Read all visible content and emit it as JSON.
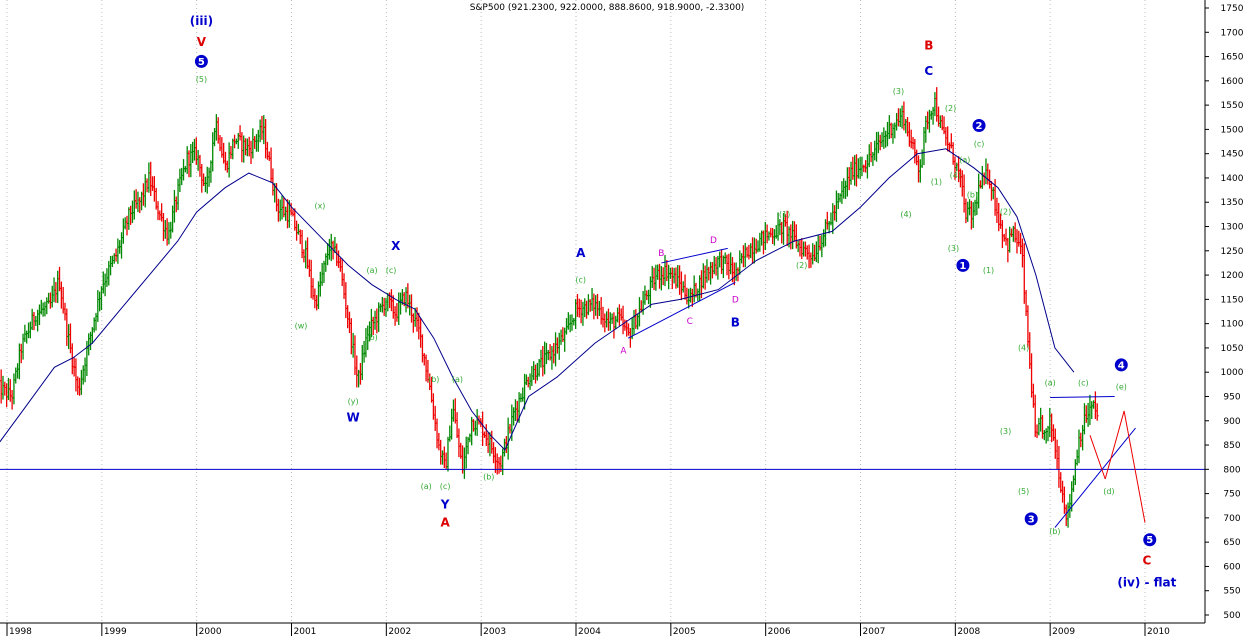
{
  "chart_data": {
    "type": "candlestick",
    "title": "S&P500 (921.2300, 922.0000, 888.8600, 918.9000, -2.3300)",
    "symbol": "S&P500",
    "last_bar": {
      "open": 921.23,
      "high": 922.0,
      "low": 888.86,
      "close": 918.9,
      "change": -2.33
    },
    "y_axis": {
      "position": "right",
      "ylim": [
        500,
        1750
      ],
      "ticks": [
        500,
        550,
        600,
        650,
        700,
        750,
        800,
        850,
        900,
        950,
        1000,
        1050,
        1100,
        1150,
        1200,
        1250,
        1300,
        1350,
        1400,
        1450,
        1500,
        1550,
        1600,
        1650,
        1700,
        1750
      ]
    },
    "x_axis": {
      "ticks": [
        "1998",
        "1999",
        "2000",
        "2001",
        "2002",
        "2003",
        "2004",
        "2005",
        "2006",
        "2007",
        "2008",
        "2009",
        "2010"
      ],
      "xlim": [
        1997.9,
        2010.25
      ]
    },
    "grid": "vertical-dotted",
    "colors": {
      "up": "#008800",
      "down": "#ee0000",
      "ma": "#00008b",
      "lines": "#0000cc",
      "wave_minor": "#33aa33",
      "wave_blue": "#0000cc",
      "wave_red": "#dd0000",
      "wave_magenta": "#cc00cc"
    },
    "series": [
      {
        "name": "S&P500 weekly",
        "kind": "bars",
        "anchors": [
          [
            1997.9,
            970
          ],
          [
            1998.05,
            950
          ],
          [
            1998.15,
            1050
          ],
          [
            1998.3,
            1120
          ],
          [
            1998.45,
            1135
          ],
          [
            1998.55,
            1190
          ],
          [
            1998.62,
            1100
          ],
          [
            1998.75,
            960
          ],
          [
            1998.85,
            1050
          ],
          [
            1999.0,
            1180
          ],
          [
            1999.15,
            1240
          ],
          [
            1999.3,
            1330
          ],
          [
            1999.4,
            1350
          ],
          [
            1999.5,
            1400
          ],
          [
            1999.6,
            1330
          ],
          [
            1999.7,
            1280
          ],
          [
            1999.8,
            1370
          ],
          [
            1999.9,
            1440
          ],
          [
            2000.0,
            1450
          ],
          [
            2000.1,
            1370
          ],
          [
            2000.2,
            1520
          ],
          [
            2000.3,
            1420
          ],
          [
            2000.4,
            1480
          ],
          [
            2000.55,
            1460
          ],
          [
            2000.7,
            1500
          ],
          [
            2000.85,
            1340
          ],
          [
            2001.0,
            1320
          ],
          [
            2001.15,
            1240
          ],
          [
            2001.25,
            1140
          ],
          [
            2001.4,
            1260
          ],
          [
            2001.5,
            1230
          ],
          [
            2001.58,
            1130
          ],
          [
            2001.7,
            980
          ],
          [
            2001.8,
            1080
          ],
          [
            2002.0,
            1150
          ],
          [
            2002.1,
            1120
          ],
          [
            2002.2,
            1160
          ],
          [
            2002.35,
            1080
          ],
          [
            2002.45,
            980
          ],
          [
            2002.55,
            850
          ],
          [
            2002.62,
            800
          ],
          [
            2002.7,
            930
          ],
          [
            2002.8,
            800
          ],
          [
            2002.9,
            900
          ],
          [
            2003.0,
            890
          ],
          [
            2003.1,
            850
          ],
          [
            2003.2,
            810
          ],
          [
            2003.35,
            920
          ],
          [
            2003.5,
            990
          ],
          [
            2003.7,
            1030
          ],
          [
            2003.9,
            1080
          ],
          [
            2004.0,
            1130
          ],
          [
            2004.2,
            1140
          ],
          [
            2004.35,
            1100
          ],
          [
            2004.45,
            1110
          ],
          [
            2004.55,
            1075
          ],
          [
            2004.7,
            1140
          ],
          [
            2004.85,
            1200
          ],
          [
            2004.95,
            1210
          ],
          [
            2005.1,
            1180
          ],
          [
            2005.2,
            1150
          ],
          [
            2005.35,
            1200
          ],
          [
            2005.5,
            1230
          ],
          [
            2005.6,
            1220
          ],
          [
            2005.68,
            1200
          ],
          [
            2005.8,
            1250
          ],
          [
            2006.0,
            1280
          ],
          [
            2006.2,
            1300
          ],
          [
            2006.35,
            1260
          ],
          [
            2006.5,
            1240
          ],
          [
            2006.7,
            1320
          ],
          [
            2006.9,
            1410
          ],
          [
            2007.1,
            1440
          ],
          [
            2007.3,
            1500
          ],
          [
            2007.45,
            1530
          ],
          [
            2007.55,
            1460
          ],
          [
            2007.62,
            1420
          ],
          [
            2007.7,
            1520
          ],
          [
            2007.78,
            1560
          ],
          [
            2007.85,
            1500
          ],
          [
            2007.95,
            1460
          ],
          [
            2008.05,
            1400
          ],
          [
            2008.1,
            1330
          ],
          [
            2008.18,
            1320
          ],
          [
            2008.25,
            1380
          ],
          [
            2008.35,
            1410
          ],
          [
            2008.45,
            1320
          ],
          [
            2008.55,
            1260
          ],
          [
            2008.6,
            1290
          ],
          [
            2008.7,
            1250
          ],
          [
            2008.75,
            1100
          ],
          [
            2008.8,
            980
          ],
          [
            2008.85,
            850
          ],
          [
            2008.9,
            900
          ],
          [
            2008.95,
            860
          ],
          [
            2009.0,
            900
          ],
          [
            2009.05,
            850
          ],
          [
            2009.12,
            760
          ],
          [
            2009.18,
            700
          ],
          [
            2009.25,
            790
          ],
          [
            2009.3,
            860
          ],
          [
            2009.38,
            910
          ],
          [
            2009.45,
            930
          ],
          [
            2009.5,
            910
          ]
        ]
      },
      {
        "name": "Moving average",
        "kind": "line",
        "points": [
          [
            1997.9,
            850
          ],
          [
            1998.2,
            930
          ],
          [
            1998.5,
            1010
          ],
          [
            1998.7,
            1030
          ],
          [
            1998.9,
            1060
          ],
          [
            1999.2,
            1130
          ],
          [
            1999.5,
            1200
          ],
          [
            1999.8,
            1270
          ],
          [
            2000.0,
            1330
          ],
          [
            2000.3,
            1380
          ],
          [
            2000.55,
            1410
          ],
          [
            2000.8,
            1390
          ],
          [
            2001.0,
            1340
          ],
          [
            2001.3,
            1280
          ],
          [
            2001.6,
            1220
          ],
          [
            2001.85,
            1180
          ],
          [
            2002.1,
            1150
          ],
          [
            2002.3,
            1130
          ],
          [
            2002.5,
            1070
          ],
          [
            2002.7,
            990
          ],
          [
            2002.9,
            920
          ],
          [
            2003.1,
            870
          ],
          [
            2003.25,
            840
          ],
          [
            2003.5,
            950
          ],
          [
            2003.8,
            990
          ],
          [
            2004.2,
            1060
          ],
          [
            2004.5,
            1100
          ],
          [
            2004.8,
            1140
          ],
          [
            2005.1,
            1150
          ],
          [
            2005.5,
            1170
          ],
          [
            2005.9,
            1230
          ],
          [
            2006.3,
            1270
          ],
          [
            2006.7,
            1290
          ],
          [
            2007.0,
            1340
          ],
          [
            2007.3,
            1400
          ],
          [
            2007.6,
            1450
          ],
          [
            2007.9,
            1460
          ],
          [
            2008.2,
            1420
          ],
          [
            2008.45,
            1380
          ],
          [
            2008.65,
            1320
          ],
          [
            2008.85,
            1200
          ],
          [
            2009.05,
            1050
          ],
          [
            2009.25,
            1000
          ]
        ]
      }
    ],
    "lines": [
      {
        "kind": "horizontal",
        "y": 800
      },
      {
        "kind": "segment",
        "from": [
          2009.0,
          948
        ],
        "to": [
          2009.68,
          950
        ]
      },
      {
        "kind": "segment",
        "from": [
          2009.05,
          680
        ],
        "to": [
          2009.9,
          885
        ]
      },
      {
        "kind": "segment",
        "from": [
          2004.55,
          1070
        ],
        "to": [
          2005.68,
          1185
        ]
      },
      {
        "kind": "segment",
        "from": [
          2004.9,
          1225
        ],
        "to": [
          2005.6,
          1255
        ]
      },
      {
        "kind": "projection",
        "points": [
          [
            2009.42,
            870
          ],
          [
            2009.58,
            780
          ]
        ]
      },
      {
        "kind": "projection",
        "points": [
          [
            2009.58,
            780
          ],
          [
            2009.78,
            920
          ],
          [
            2010.0,
            690
          ]
        ]
      }
    ],
    "annotations": [
      {
        "text": "(iii)",
        "x": 2000.05,
        "y": 1723,
        "style": "blue_lg"
      },
      {
        "text": "V",
        "x": 2000.05,
        "y": 1680,
        "style": "red_lg"
      },
      {
        "text": "5",
        "x": 2000.05,
        "y": 1640,
        "style": "circle"
      },
      {
        "text": "(5)",
        "x": 2000.05,
        "y": 1603,
        "style": "green"
      },
      {
        "text": "(x)",
        "x": 2001.3,
        "y": 1343,
        "style": "green"
      },
      {
        "text": "(w)",
        "x": 2001.1,
        "y": 1095,
        "style": "green"
      },
      {
        "text": "(y)",
        "x": 2001.65,
        "y": 940,
        "style": "green"
      },
      {
        "text": "W",
        "x": 2001.65,
        "y": 907,
        "style": "blue_lg"
      },
      {
        "text": "X",
        "x": 2002.1,
        "y": 1260,
        "style": "blue_lg"
      },
      {
        "text": "(a)",
        "x": 2001.85,
        "y": 1210,
        "style": "green"
      },
      {
        "text": "(c)",
        "x": 2002.05,
        "y": 1210,
        "style": "green"
      },
      {
        "text": "(b)",
        "x": 2001.85,
        "y": 1072,
        "style": "green"
      },
      {
        "text": "(b)",
        "x": 2002.5,
        "y": 985,
        "style": "green"
      },
      {
        "text": "(a)",
        "x": 2002.75,
        "y": 985,
        "style": "green"
      },
      {
        "text": "(a)",
        "x": 2002.42,
        "y": 765,
        "style": "green"
      },
      {
        "text": "(c)",
        "x": 2002.62,
        "y": 765,
        "style": "green"
      },
      {
        "text": "Y",
        "x": 2002.62,
        "y": 728,
        "style": "blue_lg"
      },
      {
        "text": "A",
        "x": 2002.62,
        "y": 690,
        "style": "red_lg"
      },
      {
        "text": "(b)",
        "x": 2003.08,
        "y": 785,
        "style": "green"
      },
      {
        "text": "A",
        "x": 2004.05,
        "y": 1245,
        "style": "blue_lg"
      },
      {
        "text": "(c)",
        "x": 2004.05,
        "y": 1190,
        "style": "green"
      },
      {
        "text": "B",
        "x": 2004.9,
        "y": 1245,
        "style": "magenta"
      },
      {
        "text": "D",
        "x": 2005.45,
        "y": 1272,
        "style": "magenta"
      },
      {
        "text": "A",
        "x": 2004.5,
        "y": 1045,
        "style": "magenta"
      },
      {
        "text": "C",
        "x": 2005.2,
        "y": 1105,
        "style": "magenta"
      },
      {
        "text": "D",
        "x": 2005.68,
        "y": 1150,
        "style": "magenta"
      },
      {
        "text": "B",
        "x": 2005.68,
        "y": 1102,
        "style": "blue_lg"
      },
      {
        "text": "(1)",
        "x": 2006.2,
        "y": 1325,
        "style": "green"
      },
      {
        "text": "(2)",
        "x": 2006.38,
        "y": 1220,
        "style": "green"
      },
      {
        "text": "B",
        "x": 2007.72,
        "y": 1673,
        "style": "red_lg"
      },
      {
        "text": "C",
        "x": 2007.72,
        "y": 1620,
        "style": "blue_lg"
      },
      {
        "text": "(3)",
        "x": 2007.4,
        "y": 1578,
        "style": "green"
      },
      {
        "text": "(4)",
        "x": 2007.48,
        "y": 1325,
        "style": "green"
      },
      {
        "text": "(1)",
        "x": 2007.8,
        "y": 1392,
        "style": "green"
      },
      {
        "text": "(2)",
        "x": 2007.95,
        "y": 1543,
        "style": "green"
      },
      {
        "text": "(3)",
        "x": 2007.98,
        "y": 1255,
        "style": "green"
      },
      {
        "text": "1",
        "x": 2008.08,
        "y": 1220,
        "style": "circle"
      },
      {
        "text": "2",
        "x": 2008.25,
        "y": 1508,
        "style": "circle"
      },
      {
        "text": "(c)",
        "x": 2008.25,
        "y": 1470,
        "style": "green"
      },
      {
        "text": "(a)",
        "x": 2008.1,
        "y": 1437,
        "style": "green"
      },
      {
        "text": "(4)",
        "x": 2008.0,
        "y": 1405,
        "style": "green"
      },
      {
        "text": "(b)",
        "x": 2008.18,
        "y": 1365,
        "style": "green"
      },
      {
        "text": "(2)",
        "x": 2008.53,
        "y": 1330,
        "style": "green"
      },
      {
        "text": "(1)",
        "x": 2008.35,
        "y": 1210,
        "style": "green"
      },
      {
        "text": "(4)",
        "x": 2008.72,
        "y": 1050,
        "style": "green"
      },
      {
        "text": "(3)",
        "x": 2008.53,
        "y": 878,
        "style": "green"
      },
      {
        "text": "(5)",
        "x": 2008.72,
        "y": 755,
        "style": "green"
      },
      {
        "text": "3",
        "x": 2008.8,
        "y": 698,
        "style": "circle"
      },
      {
        "text": "(a)",
        "x": 2009.0,
        "y": 978,
        "style": "green"
      },
      {
        "text": "(c)",
        "x": 2009.35,
        "y": 978,
        "style": "green"
      },
      {
        "text": "(e)",
        "x": 2009.75,
        "y": 970,
        "style": "green"
      },
      {
        "text": "(d)",
        "x": 2009.62,
        "y": 755,
        "style": "green"
      },
      {
        "text": "(b)",
        "x": 2009.05,
        "y": 672,
        "style": "green"
      },
      {
        "text": "4",
        "x": 2009.75,
        "y": 1015,
        "style": "circle"
      },
      {
        "text": "5",
        "x": 2010.05,
        "y": 655,
        "style": "circle"
      },
      {
        "text": "C",
        "x": 2010.02,
        "y": 612,
        "style": "red_lg"
      },
      {
        "text": "(iv) - flat",
        "x": 2010.02,
        "y": 567,
        "style": "blue_lg"
      }
    ]
  }
}
